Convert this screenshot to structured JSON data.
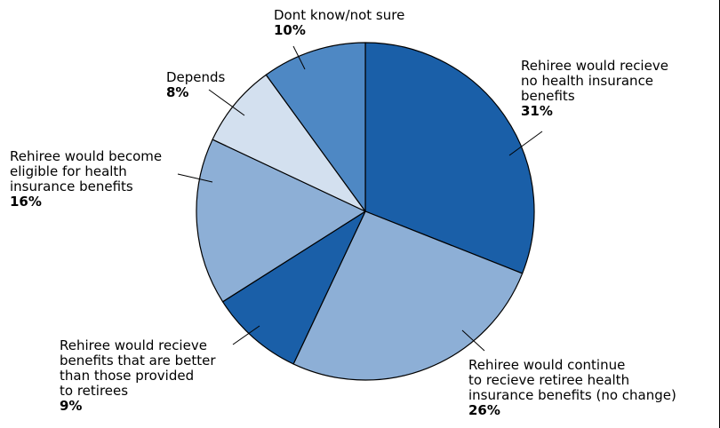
{
  "chart_data": {
    "type": "pie",
    "slices": [
      {
        "label": "Rehiree would recieve\nno health insurance\nbenefits",
        "value": 31,
        "value_label": "31%",
        "color": "#1a5fa8"
      },
      {
        "label": "Rehiree would continue\nto recieve retiree health\ninsurance benefits (no change)",
        "value": 26,
        "value_label": "26%",
        "color": "#8dafd6"
      },
      {
        "label": "Rehiree would recieve\nbenefits that are better\nthan those provided\nto retirees",
        "value": 9,
        "value_label": "9%",
        "color": "#1a5fa8"
      },
      {
        "label": "Rehiree would become\neligible for health\ninsurance benefits",
        "value": 16,
        "value_label": "16%",
        "color": "#8dafd6"
      },
      {
        "label": "Depends",
        "value": 8,
        "value_label": "8%",
        "color": "#d3e0ef"
      },
      {
        "label": "Dont know/not sure",
        "value": 10,
        "value_label": "10%",
        "color": "#4e88c4"
      }
    ],
    "start": "top",
    "direction": "clockwise",
    "legend": "none"
  }
}
